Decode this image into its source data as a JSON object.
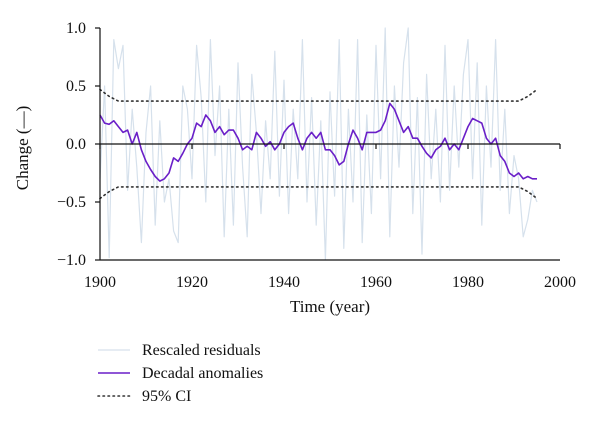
{
  "chart_data": {
    "type": "line",
    "xlabel": "Time (year)",
    "ylabel": "Change (—)",
    "xlim": [
      1900,
      2000
    ],
    "ylim": [
      -1.0,
      1.0
    ],
    "x_ticks": [
      1900,
      1920,
      1940,
      1960,
      1980,
      2000
    ],
    "y_ticks": [
      1.0,
      0.5,
      0.0,
      -0.5,
      -1.0
    ],
    "y_tick_labels": [
      "1.0",
      "0.5",
      "0.0",
      "−0.5",
      "−1.0"
    ],
    "grid": false,
    "legend_position": "bottom-left",
    "series": [
      {
        "name": "Rescaled residuals",
        "style": "solid",
        "color": "#d6e1ec",
        "x": [
          1900,
          1901,
          1902,
          1903,
          1904,
          1905,
          1906,
          1907,
          1908,
          1909,
          1910,
          1911,
          1912,
          1913,
          1914,
          1915,
          1916,
          1917,
          1918,
          1919,
          1920,
          1921,
          1922,
          1923,
          1924,
          1925,
          1926,
          1927,
          1928,
          1929,
          1930,
          1931,
          1932,
          1933,
          1934,
          1935,
          1936,
          1937,
          1938,
          1939,
          1940,
          1941,
          1942,
          1943,
          1944,
          1945,
          1946,
          1947,
          1948,
          1949,
          1950,
          1951,
          1952,
          1953,
          1954,
          1955,
          1956,
          1957,
          1958,
          1959,
          1960,
          1961,
          1962,
          1963,
          1964,
          1965,
          1966,
          1967,
          1968,
          1969,
          1970,
          1971,
          1972,
          1973,
          1974,
          1975,
          1976,
          1977,
          1978,
          1979,
          1980,
          1981,
          1982,
          1983,
          1984,
          1985,
          1986,
          1987,
          1988,
          1989,
          1990,
          1991,
          1992,
          1993,
          1994,
          1995
        ],
        "values": [
          -0.3,
          0.5,
          -0.98,
          0.9,
          0.65,
          0.85,
          -0.4,
          0.3,
          -0.2,
          -0.85,
          0.1,
          0.5,
          -0.7,
          0.2,
          -0.5,
          -0.3,
          -0.75,
          -0.85,
          0.5,
          0.3,
          -0.3,
          0.85,
          0.4,
          -0.5,
          0.9,
          -0.1,
          0.5,
          -0.8,
          0.3,
          -0.7,
          0.7,
          -0.2,
          -0.8,
          0.6,
          0.1,
          -0.6,
          0.2,
          -0.3,
          0.8,
          -0.45,
          0.55,
          -0.6,
          0.3,
          -0.3,
          0.9,
          -0.5,
          0.4,
          -0.7,
          0.2,
          -1.0,
          0.45,
          -0.45,
          0.9,
          -0.9,
          0.3,
          -0.5,
          0.9,
          -0.85,
          0.25,
          -0.6,
          0.85,
          -0.3,
          1.0,
          -0.8,
          0.5,
          -0.2,
          0.7,
          1.0,
          -0.6,
          0.4,
          -0.95,
          0.6,
          -0.3,
          0.3,
          -0.5,
          0.85,
          -0.4,
          0.5,
          -0.2,
          0.6,
          0.9,
          -0.3,
          0.7,
          -0.7,
          0.5,
          -0.2,
          0.9,
          -0.4,
          0.3,
          -0.6,
          -0.1,
          -0.3,
          -0.8,
          -0.65,
          -0.4,
          -0.5
        ]
      },
      {
        "name": "Decadal anomalies",
        "style": "solid",
        "color": "#6a1fc8",
        "x": [
          1900,
          1901,
          1902,
          1903,
          1904,
          1905,
          1906,
          1907,
          1908,
          1909,
          1910,
          1911,
          1912,
          1913,
          1914,
          1915,
          1916,
          1917,
          1918,
          1919,
          1920,
          1921,
          1922,
          1923,
          1924,
          1925,
          1926,
          1927,
          1928,
          1929,
          1930,
          1931,
          1932,
          1933,
          1934,
          1935,
          1936,
          1937,
          1938,
          1939,
          1940,
          1941,
          1942,
          1943,
          1944,
          1945,
          1946,
          1947,
          1948,
          1949,
          1950,
          1951,
          1952,
          1953,
          1954,
          1955,
          1956,
          1957,
          1958,
          1959,
          1960,
          1961,
          1962,
          1963,
          1964,
          1965,
          1966,
          1967,
          1968,
          1969,
          1970,
          1971,
          1972,
          1973,
          1974,
          1975,
          1976,
          1977,
          1978,
          1979,
          1980,
          1981,
          1982,
          1983,
          1984,
          1985,
          1986,
          1987,
          1988,
          1989,
          1990,
          1991,
          1992,
          1993,
          1994,
          1995
        ],
        "values": [
          0.25,
          0.18,
          0.17,
          0.2,
          0.15,
          0.1,
          0.12,
          0.0,
          0.1,
          -0.05,
          -0.15,
          -0.22,
          -0.28,
          -0.32,
          -0.3,
          -0.25,
          -0.12,
          -0.15,
          -0.08,
          0.0,
          0.05,
          0.18,
          0.15,
          0.25,
          0.2,
          0.1,
          0.15,
          0.08,
          0.12,
          0.12,
          0.05,
          -0.05,
          -0.02,
          -0.05,
          0.1,
          0.05,
          -0.02,
          0.02,
          -0.05,
          0.0,
          0.1,
          0.15,
          0.18,
          0.05,
          -0.05,
          0.05,
          0.1,
          0.05,
          0.1,
          -0.05,
          -0.05,
          -0.1,
          -0.18,
          -0.15,
          0.0,
          0.12,
          0.05,
          -0.05,
          0.1,
          0.1,
          0.1,
          0.12,
          0.2,
          0.35,
          0.3,
          0.2,
          0.1,
          0.15,
          0.05,
          0.05,
          -0.02,
          -0.08,
          -0.12,
          -0.05,
          -0.02,
          0.05,
          -0.05,
          0.0,
          -0.05,
          0.05,
          0.15,
          0.22,
          0.2,
          0.18,
          0.05,
          0.0,
          0.05,
          -0.1,
          -0.15,
          -0.25,
          -0.28,
          -0.25,
          -0.3,
          -0.28,
          -0.3,
          -0.3
        ]
      },
      {
        "name": "95% CI",
        "style": "dotted",
        "color": "#333333",
        "upper": {
          "x": [
            1900,
            1901,
            1902,
            1903,
            1904,
            1905,
            1910,
            1920,
            1930,
            1940,
            1950,
            1960,
            1970,
            1980,
            1990,
            1991,
            1992,
            1993,
            1994,
            1995
          ],
          "values": [
            0.47,
            0.44,
            0.41,
            0.39,
            0.37,
            0.37,
            0.37,
            0.37,
            0.37,
            0.37,
            0.37,
            0.37,
            0.37,
            0.37,
            0.37,
            0.37,
            0.39,
            0.41,
            0.44,
            0.47
          ]
        },
        "lower": {
          "x": [
            1900,
            1901,
            1902,
            1903,
            1904,
            1905,
            1910,
            1920,
            1930,
            1940,
            1950,
            1960,
            1970,
            1980,
            1990,
            1991,
            1992,
            1993,
            1994,
            1995
          ],
          "values": [
            -0.47,
            -0.44,
            -0.41,
            -0.39,
            -0.37,
            -0.37,
            -0.37,
            -0.37,
            -0.37,
            -0.37,
            -0.37,
            -0.37,
            -0.37,
            -0.37,
            -0.37,
            -0.37,
            -0.39,
            -0.41,
            -0.44,
            -0.47
          ]
        }
      }
    ]
  }
}
